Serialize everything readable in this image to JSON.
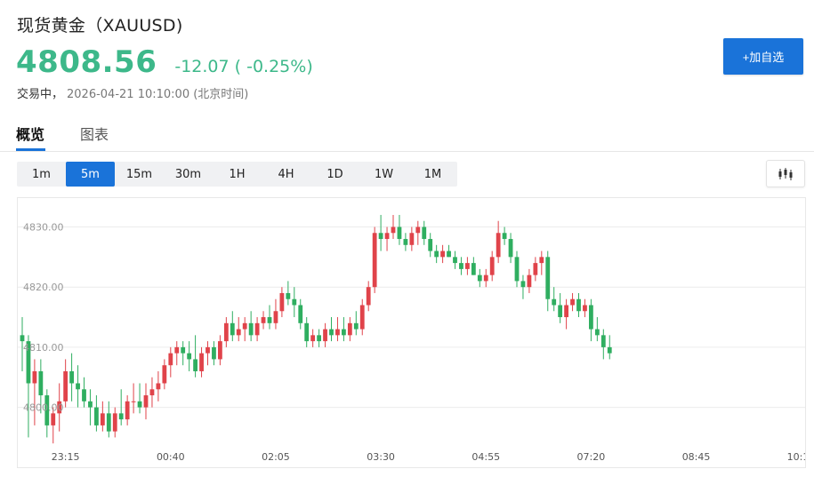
{
  "header": {
    "title": "现货黄金（XAUUSD)",
    "price": "4808.56",
    "change": "-12.07 ( -0.25%)",
    "status": "交易中，",
    "timestamp": "2026-04-21 10:10:00 (北京时间)",
    "add_button": "+加自选"
  },
  "tabs": [
    {
      "label": "概览",
      "active": true
    },
    {
      "label": "图表",
      "active": false
    }
  ],
  "periods": [
    {
      "label": "1m",
      "active": false
    },
    {
      "label": "5m",
      "active": true
    },
    {
      "label": "15m",
      "active": false
    },
    {
      "label": "30m",
      "active": false
    },
    {
      "label": "1H",
      "active": false
    },
    {
      "label": "4H",
      "active": false
    },
    {
      "label": "1D",
      "active": false
    },
    {
      "label": "1W",
      "active": false
    },
    {
      "label": "1M",
      "active": false
    }
  ],
  "chart_type_icon": "candlestick-icon",
  "colors": {
    "up": "#e0434a",
    "down": "#2fae60",
    "accent": "#1a73d9",
    "price": "#3db88a"
  },
  "chart_data": {
    "type": "candlestick",
    "interval": "5m",
    "y_ticks": [
      "4830.00",
      "4820.00",
      "4810.00",
      "4800.00"
    ],
    "y_tick_values": [
      4830,
      4820,
      4810,
      4800
    ],
    "ylim": [
      4792.7,
      4834.8
    ],
    "x_ticks": [
      "23:15",
      "00:40",
      "02:05",
      "03:30",
      "04:55",
      "07:20",
      "08:45",
      "10:1"
    ],
    "x_tick_index": [
      7,
      24,
      41,
      58,
      75,
      92,
      109,
      126
    ],
    "grid": true,
    "candles": [
      [
        4812,
        4815,
        4806,
        4811
      ],
      [
        4811,
        4812,
        4795,
        4804
      ],
      [
        4804,
        4808,
        4797,
        4806
      ],
      [
        4806,
        4808,
        4799,
        4802
      ],
      [
        4802,
        4803,
        4795,
        4797
      ],
      [
        4797,
        4800,
        4794,
        4799
      ],
      [
        4799,
        4804,
        4796,
        4801
      ],
      [
        4801,
        4808,
        4800,
        4806
      ],
      [
        4806,
        4809,
        4801,
        4804
      ],
      [
        4804,
        4807,
        4800,
        4803
      ],
      [
        4803,
        4805,
        4800,
        4801
      ],
      [
        4801,
        4803,
        4797,
        4800
      ],
      [
        4800,
        4802,
        4796,
        4797
      ],
      [
        4797,
        4801,
        4796,
        4799
      ],
      [
        4799,
        4801,
        4795,
        4796
      ],
      [
        4796,
        4800,
        4795,
        4799
      ],
      [
        4799,
        4803,
        4797,
        4798
      ],
      [
        4798,
        4802,
        4797,
        4801
      ],
      [
        4801,
        4804,
        4799,
        4801
      ],
      [
        4801,
        4804,
        4799,
        4800
      ],
      [
        4800,
        4804,
        4798,
        4802
      ],
      [
        4802,
        4805,
        4800,
        4803
      ],
      [
        4803,
        4806,
        4801,
        4804
      ],
      [
        4804,
        4808,
        4803,
        4807
      ],
      [
        4807,
        4810,
        4805,
        4809
      ],
      [
        4809,
        4811,
        4807,
        4810
      ],
      [
        4810,
        4811,
        4807,
        4809
      ],
      [
        4809,
        4811,
        4806,
        4808
      ],
      [
        4808,
        4812,
        4805,
        4806
      ],
      [
        4806,
        4810,
        4805,
        4809
      ],
      [
        4809,
        4811,
        4807,
        4810
      ],
      [
        4810,
        4811,
        4807,
        4808
      ],
      [
        4808,
        4812,
        4807,
        4811
      ],
      [
        4811,
        4815,
        4810,
        4814
      ],
      [
        4814,
        4816,
        4811,
        4812
      ],
      [
        4812,
        4815,
        4811,
        4813
      ],
      [
        4813,
        4815,
        4811,
        4814
      ],
      [
        4814,
        4816,
        4811,
        4812
      ],
      [
        4812,
        4815,
        4811,
        4814
      ],
      [
        4814,
        4816,
        4813,
        4815
      ],
      [
        4815,
        4817,
        4813,
        4814
      ],
      [
        4814,
        4818,
        4813,
        4816
      ],
      [
        4816,
        4820,
        4815,
        4819
      ],
      [
        4819,
        4821,
        4817,
        4818
      ],
      [
        4818,
        4820,
        4815,
        4817
      ],
      [
        4817,
        4818,
        4813,
        4814
      ],
      [
        4814,
        4815,
        4810,
        4811
      ],
      [
        4811,
        4813,
        4810,
        4812
      ],
      [
        4812,
        4813,
        4810,
        4811
      ],
      [
        4811,
        4814,
        4810,
        4813
      ],
      [
        4813,
        4815,
        4811,
        4812
      ],
      [
        4812,
        4815,
        4811,
        4813
      ],
      [
        4813,
        4815,
        4811,
        4812
      ],
      [
        4812,
        4815,
        4811,
        4814
      ],
      [
        4814,
        4816,
        4812,
        4813
      ],
      [
        4813,
        4818,
        4812,
        4817
      ],
      [
        4817,
        4821,
        4816,
        4820
      ],
      [
        4820,
        4830,
        4819,
        4829
      ],
      [
        4829,
        4832,
        4826,
        4828
      ],
      [
        4828,
        4830,
        4826,
        4829
      ],
      [
        4829,
        4832,
        4828,
        4830
      ],
      [
        4830,
        4832,
        4827,
        4828
      ],
      [
        4828,
        4829,
        4826,
        4827
      ],
      [
        4827,
        4830,
        4826,
        4829
      ],
      [
        4829,
        4831,
        4827,
        4830
      ],
      [
        4830,
        4831,
        4827,
        4828
      ],
      [
        4828,
        4829,
        4825,
        4826
      ],
      [
        4826,
        4827,
        4824,
        4825
      ],
      [
        4825,
        4827,
        4824,
        4826
      ],
      [
        4826,
        4827,
        4825,
        4825
      ],
      [
        4825,
        4826,
        4823,
        4824
      ],
      [
        4824,
        4825,
        4822,
        4823
      ],
      [
        4823,
        4825,
        4822,
        4824
      ],
      [
        4824,
        4825,
        4822,
        4822
      ],
      [
        4822,
        4823,
        4820,
        4821
      ],
      [
        4821,
        4823,
        4820,
        4822
      ],
      [
        4822,
        4826,
        4821,
        4825
      ],
      [
        4825,
        4831,
        4824,
        4829
      ],
      [
        4829,
        4830,
        4827,
        4828
      ],
      [
        4828,
        4829,
        4824,
        4825
      ],
      [
        4825,
        4826,
        4820,
        4821
      ],
      [
        4821,
        4822,
        4818,
        4820
      ],
      [
        4820,
        4823,
        4819,
        4822
      ],
      [
        4822,
        4825,
        4821,
        4824
      ],
      [
        4824,
        4826,
        4822,
        4825
      ],
      [
        4825,
        4826,
        4816,
        4818
      ],
      [
        4818,
        4820,
        4816,
        4817
      ],
      [
        4817,
        4819,
        4814,
        4815
      ],
      [
        4815,
        4818,
        4813,
        4817
      ],
      [
        4817,
        4819,
        4816,
        4818
      ],
      [
        4818,
        4819,
        4815,
        4816
      ],
      [
        4816,
        4818,
        4815,
        4817
      ],
      [
        4817,
        4818,
        4811,
        4813
      ],
      [
        4813,
        4815,
        4811,
        4812
      ],
      [
        4812,
        4813,
        4808,
        4810
      ],
      [
        4810,
        4812,
        4808,
        4809
      ]
    ]
  }
}
